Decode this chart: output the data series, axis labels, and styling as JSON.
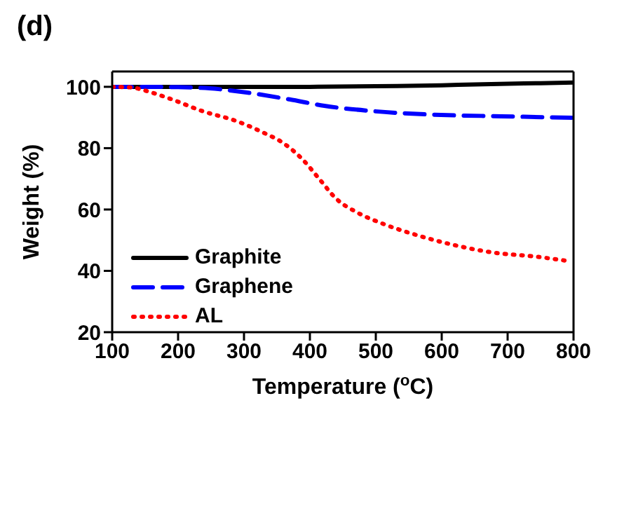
{
  "chart_data": {
    "type": "line",
    "title": "(d)",
    "xlabel": "Temperature ($^{o}$C)",
    "ylabel": "Weight (%)",
    "xlim": [
      100,
      800
    ],
    "xticks": [
      100,
      200,
      300,
      400,
      500,
      600,
      700,
      800
    ],
    "ylim": [
      20,
      105
    ],
    "yticks": [
      20,
      40,
      60,
      80,
      100
    ],
    "legend": "bottom left",
    "marker": "none",
    "series": [
      {
        "name": "Graphite",
        "color": "#000000",
        "line_style": "solid",
        "x": [
          100,
          200,
          300,
          400,
          500,
          600,
          650,
          700,
          750,
          800
        ],
        "values": [
          100,
          100,
          100,
          100,
          100.2,
          100.5,
          100.8,
          101,
          101.2,
          101.4
        ]
      },
      {
        "name": "Graphene",
        "color": "#0000ff",
        "line_style": "dashed",
        "x": [
          100,
          150,
          200,
          248,
          302,
          369,
          422,
          489,
          589,
          690,
          800
        ],
        "values": [
          100,
          100,
          99.9,
          99.5,
          98.2,
          95.9,
          93.8,
          92.2,
          90.9,
          90.4,
          89.9
        ]
      },
      {
        "name": "AL",
        "color": "#ff0000",
        "line_style": "dotted",
        "x": [
          100,
          130,
          151,
          188,
          238,
          289,
          325,
          362,
          389,
          416,
          439,
          472,
          509,
          566,
          623,
          680,
          740,
          789
        ],
        "values": [
          100,
          99.8,
          98.7,
          96.1,
          92,
          88.8,
          85.5,
          81.3,
          76.3,
          69.5,
          63.7,
          59,
          55.5,
          51.4,
          48.2,
          45.9,
          44.7,
          43.3
        ]
      }
    ]
  }
}
